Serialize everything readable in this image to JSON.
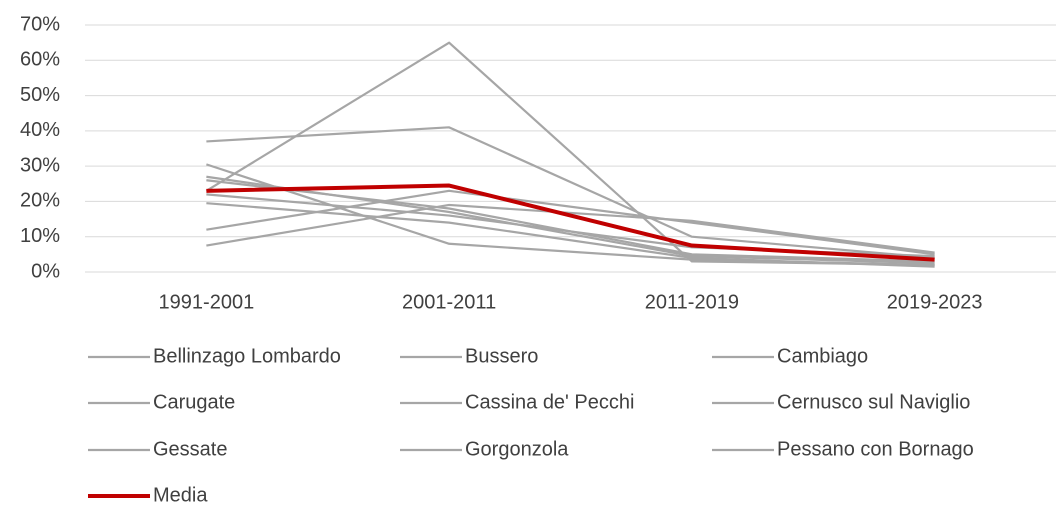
{
  "chart_data": {
    "type": "line",
    "categories": [
      "1991-2001",
      "2001-2011",
      "2011-2019",
      "2019-2023"
    ],
    "series": [
      {
        "name": "Bellinzago Lombardo",
        "color": "#a6a6a6",
        "values": [
          23,
          65,
          3,
          2
        ]
      },
      {
        "name": "Bussero",
        "color": "#a6a6a6",
        "values": [
          37,
          41,
          10,
          4
        ]
      },
      {
        "name": "Cambiago",
        "color": "#a6a6a6",
        "values": [
          7.5,
          19,
          14.5,
          5.5
        ]
      },
      {
        "name": "Carugate",
        "color": "#a6a6a6",
        "values": [
          12,
          23,
          14,
          5
        ]
      },
      {
        "name": "Cassina de' Pecchi",
        "color": "#a6a6a6",
        "values": [
          30.5,
          8,
          3.5,
          2
        ]
      },
      {
        "name": "Cernusco sul Naviglio",
        "color": "#a6a6a6",
        "values": [
          26,
          18,
          5,
          3
        ]
      },
      {
        "name": "Gessate",
        "color": "#a6a6a6",
        "values": [
          27,
          17,
          4.5,
          2.5
        ]
      },
      {
        "name": "Gorgonzola",
        "color": "#a6a6a6",
        "values": [
          22,
          16,
          7,
          4.5
        ]
      },
      {
        "name": "Pessano con Bornago",
        "color": "#a6a6a6",
        "values": [
          19.5,
          14,
          4,
          1.5
        ]
      },
      {
        "name": "Media",
        "color": "#c00000",
        "values": [
          23,
          24.5,
          7.5,
          3.5
        ]
      }
    ],
    "ylim": [
      0,
      70
    ],
    "yticks": [
      {
        "value": 0,
        "label": "0%"
      },
      {
        "value": 10,
        "label": "10%"
      },
      {
        "value": 20,
        "label": "20%"
      },
      {
        "value": 30,
        "label": "30%"
      },
      {
        "value": 40,
        "label": "40%"
      },
      {
        "value": 50,
        "label": "50%"
      },
      {
        "value": 60,
        "label": "60%"
      },
      {
        "value": 70,
        "label": "70%"
      }
    ],
    "grid": true,
    "legend": "bottom"
  }
}
